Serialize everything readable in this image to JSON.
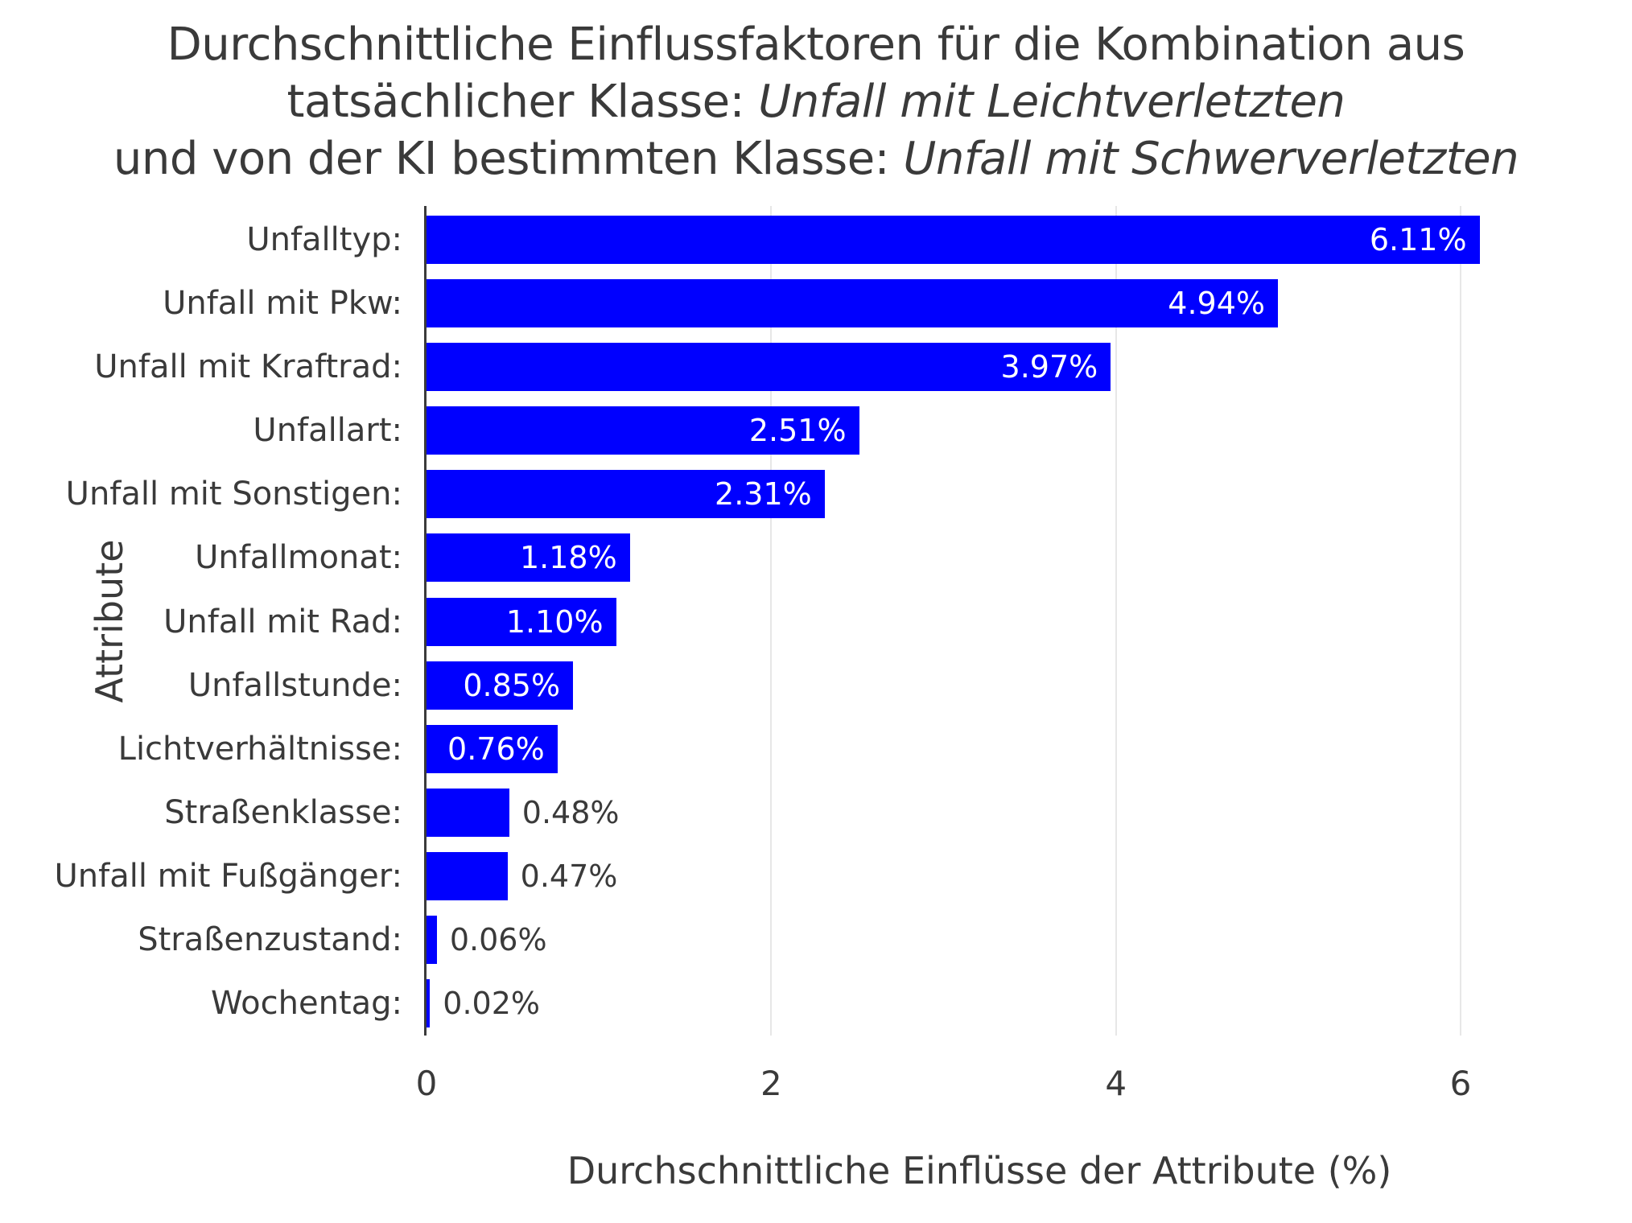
{
  "chart_data": {
    "type": "bar",
    "orientation": "horizontal",
    "title_lines": [
      {
        "normal": "Durchschnittliche Einflussfaktoren für die Kombination aus",
        "italic": ""
      },
      {
        "normal": "tatsächlicher Klasse: ",
        "italic": "Unfall mit Leichtverletzten"
      },
      {
        "normal": "und von der KI bestimmten Klasse: ",
        "italic": "Unfall mit Schwerverletzten"
      }
    ],
    "categories": [
      "Unfalltyp:",
      "Unfall mit Pkw:",
      "Unfall mit Kraftrad:",
      "Unfallart:",
      "Unfall mit Sonstigen:",
      "Unfallmonat:",
      "Unfall mit Rad:",
      "Unfallstunde:",
      "Lichtverhältnisse:",
      "Straßenklasse:",
      "Unfall mit Fußgänger:",
      "Straßenzustand:",
      "Wochentag:"
    ],
    "values": [
      6.11,
      4.94,
      3.97,
      2.51,
      2.31,
      1.18,
      1.1,
      0.85,
      0.76,
      0.48,
      0.47,
      0.06,
      0.02
    ],
    "value_labels": [
      "6.11%",
      "4.94%",
      "3.97%",
      "2.51%",
      "2.31%",
      "1.18%",
      "1.10%",
      "0.85%",
      "0.76%",
      "0.48%",
      "0.47%",
      "0.06%",
      "0.02%"
    ],
    "label_inside": [
      true,
      true,
      true,
      true,
      true,
      true,
      true,
      true,
      true,
      false,
      false,
      false,
      false
    ],
    "xlabel": "Durchschnittliche Einflüsse der Attribute (%)",
    "ylabel": "Attribute",
    "x_ticks": [
      0,
      2,
      4,
      6
    ],
    "x_tick_labels": [
      "0",
      "2",
      "4",
      "6"
    ],
    "xlim": [
      0,
      6.42
    ],
    "grid": "vertical-only",
    "legend": "none",
    "colors": {
      "bar": "#0000ff",
      "text": "#3a3a3a",
      "value_label_inside": "#ffffff",
      "value_label_outside": "#3a3a3a",
      "gridline": "#e7e7e7",
      "axis_line": "#3b3b3b",
      "background": "#ffffff"
    }
  }
}
